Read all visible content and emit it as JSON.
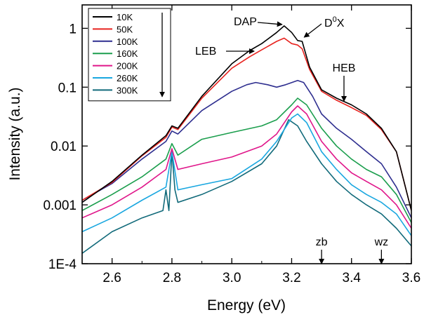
{
  "chart_data": {
    "type": "line",
    "xlabel": "Energy (eV)",
    "ylabel": "Intensity (a.u.)",
    "xlim": [
      2.5,
      3.6
    ],
    "ylim": [
      0.0001,
      2.5
    ],
    "yscale": "log",
    "grid": false,
    "legend_position": "top-left",
    "legend_arrow": "down",
    "x_ticks": [
      {
        "value": 2.6,
        "label": "2.6"
      },
      {
        "value": 2.8,
        "label": "2.8"
      },
      {
        "value": 3.0,
        "label": "3.0"
      },
      {
        "value": 3.2,
        "label": "3.2"
      },
      {
        "value": 3.4,
        "label": "3.4"
      },
      {
        "value": 3.6,
        "label": "3.6"
      }
    ],
    "y_ticks": [
      {
        "value": 1,
        "label": "1"
      },
      {
        "value": 0.1,
        "label": "0.1"
      },
      {
        "value": 0.01,
        "label": "0.01"
      },
      {
        "value": 0.001,
        "label": "0.001"
      },
      {
        "value": 0.0001,
        "label": "1E-4"
      }
    ],
    "series": [
      {
        "name": "10K",
        "color": "#000000",
        "x": [
          2.5,
          2.6,
          2.7,
          2.78,
          2.8,
          2.82,
          2.9,
          3.0,
          3.06,
          3.1,
          3.15,
          3.175,
          3.2,
          3.22,
          3.235,
          3.26,
          3.3,
          3.35,
          3.4,
          3.45,
          3.5,
          3.55,
          3.6
        ],
        "y": [
          0.0011,
          0.0025,
          0.007,
          0.015,
          0.022,
          0.02,
          0.07,
          0.25,
          0.42,
          0.55,
          0.85,
          1.1,
          0.85,
          0.62,
          0.6,
          0.22,
          0.09,
          0.065,
          0.05,
          0.035,
          0.02,
          0.008,
          0.0008
        ]
      },
      {
        "name": "50K",
        "color": "#e8231f",
        "x": [
          2.5,
          2.6,
          2.7,
          2.78,
          2.8,
          2.82,
          2.9,
          3.0,
          3.06,
          3.1,
          3.15,
          3.175,
          3.2,
          3.22,
          3.235,
          3.26,
          3.3,
          3.35,
          3.4,
          3.45,
          3.5,
          3.55,
          3.6
        ],
        "y": [
          0.0012,
          0.0024,
          0.0068,
          0.014,
          0.021,
          0.019,
          0.065,
          0.21,
          0.33,
          0.43,
          0.6,
          0.68,
          0.55,
          0.52,
          0.45,
          0.2,
          0.085,
          0.06,
          0.045,
          0.033,
          0.019,
          0.008,
          0.0008
        ]
      },
      {
        "name": "100K",
        "color": "#2e2e8f",
        "x": [
          2.5,
          2.6,
          2.7,
          2.78,
          2.8,
          2.82,
          2.9,
          3.0,
          3.05,
          3.08,
          3.12,
          3.15,
          3.18,
          3.22,
          3.24,
          3.27,
          3.3,
          3.35,
          3.4,
          3.45,
          3.5,
          3.55,
          3.6
        ],
        "y": [
          0.0012,
          0.0023,
          0.006,
          0.012,
          0.018,
          0.016,
          0.04,
          0.085,
          0.11,
          0.12,
          0.11,
          0.1,
          0.11,
          0.13,
          0.12,
          0.07,
          0.035,
          0.02,
          0.013,
          0.008,
          0.005,
          0.002,
          0.0006
        ]
      },
      {
        "name": "160K",
        "color": "#1b9e4d",
        "x": [
          2.5,
          2.6,
          2.7,
          2.78,
          2.8,
          2.82,
          2.9,
          3.0,
          3.1,
          3.15,
          3.2,
          3.22,
          3.25,
          3.3,
          3.35,
          3.4,
          3.45,
          3.5,
          3.55,
          3.6
        ],
        "y": [
          0.0008,
          0.0015,
          0.003,
          0.006,
          0.011,
          0.007,
          0.013,
          0.017,
          0.022,
          0.028,
          0.05,
          0.065,
          0.05,
          0.02,
          0.01,
          0.006,
          0.004,
          0.003,
          0.0015,
          0.0005
        ]
      },
      {
        "name": "200K",
        "color": "#e0168a",
        "x": [
          2.5,
          2.6,
          2.7,
          2.78,
          2.8,
          2.82,
          2.9,
          3.0,
          3.1,
          3.15,
          3.2,
          3.22,
          3.25,
          3.3,
          3.35,
          3.4,
          3.45,
          3.5,
          3.55,
          3.6
        ],
        "y": [
          0.0006,
          0.001,
          0.002,
          0.004,
          0.009,
          0.004,
          0.005,
          0.0065,
          0.01,
          0.016,
          0.038,
          0.048,
          0.035,
          0.012,
          0.006,
          0.0035,
          0.0025,
          0.0018,
          0.001,
          0.0004
        ]
      },
      {
        "name": "260K",
        "color": "#1aa7e0",
        "x": [
          2.5,
          2.6,
          2.7,
          2.78,
          2.8,
          2.82,
          2.9,
          3.0,
          3.1,
          3.15,
          3.2,
          3.22,
          3.25,
          3.3,
          3.35,
          3.4,
          3.45,
          3.5,
          3.55,
          3.6
        ],
        "y": [
          0.00035,
          0.0006,
          0.0012,
          0.002,
          0.008,
          0.0018,
          0.0022,
          0.0028,
          0.006,
          0.012,
          0.03,
          0.035,
          0.025,
          0.008,
          0.004,
          0.0022,
          0.0015,
          0.0011,
          0.0007,
          0.0003
        ]
      },
      {
        "name": "300K",
        "color": "#116a7a",
        "x": [
          2.5,
          2.6,
          2.7,
          2.77,
          2.78,
          2.79,
          2.8,
          2.81,
          2.82,
          2.9,
          3.0,
          3.1,
          3.15,
          3.19,
          3.22,
          3.25,
          3.3,
          3.35,
          3.4,
          3.45,
          3.5,
          3.55,
          3.6
        ],
        "y": [
          0.00015,
          0.00035,
          0.0006,
          0.0008,
          0.0018,
          0.0008,
          0.008,
          0.0018,
          0.0011,
          0.0015,
          0.0025,
          0.005,
          0.01,
          0.028,
          0.022,
          0.012,
          0.005,
          0.0025,
          0.0015,
          0.001,
          0.0007,
          0.0004,
          0.0002
        ]
      }
    ],
    "annotations": [
      {
        "text": "DAP",
        "target_x": 3.175,
        "target_y": 1.1
      },
      {
        "text": "D",
        "sup": "0",
        "text_suffix": "X",
        "target_x": 3.235,
        "target_y": 0.6
      },
      {
        "text": "LEB",
        "target_x": 3.0,
        "target_y": 0.5
      },
      {
        "text": "HEB",
        "target_x": 3.38,
        "target_y": 0.05
      },
      {
        "text": "zb",
        "target_x": 3.3,
        "target_y": 0.0001
      },
      {
        "text": "wz",
        "target_x": 3.5,
        "target_y": 0.0001
      }
    ]
  }
}
